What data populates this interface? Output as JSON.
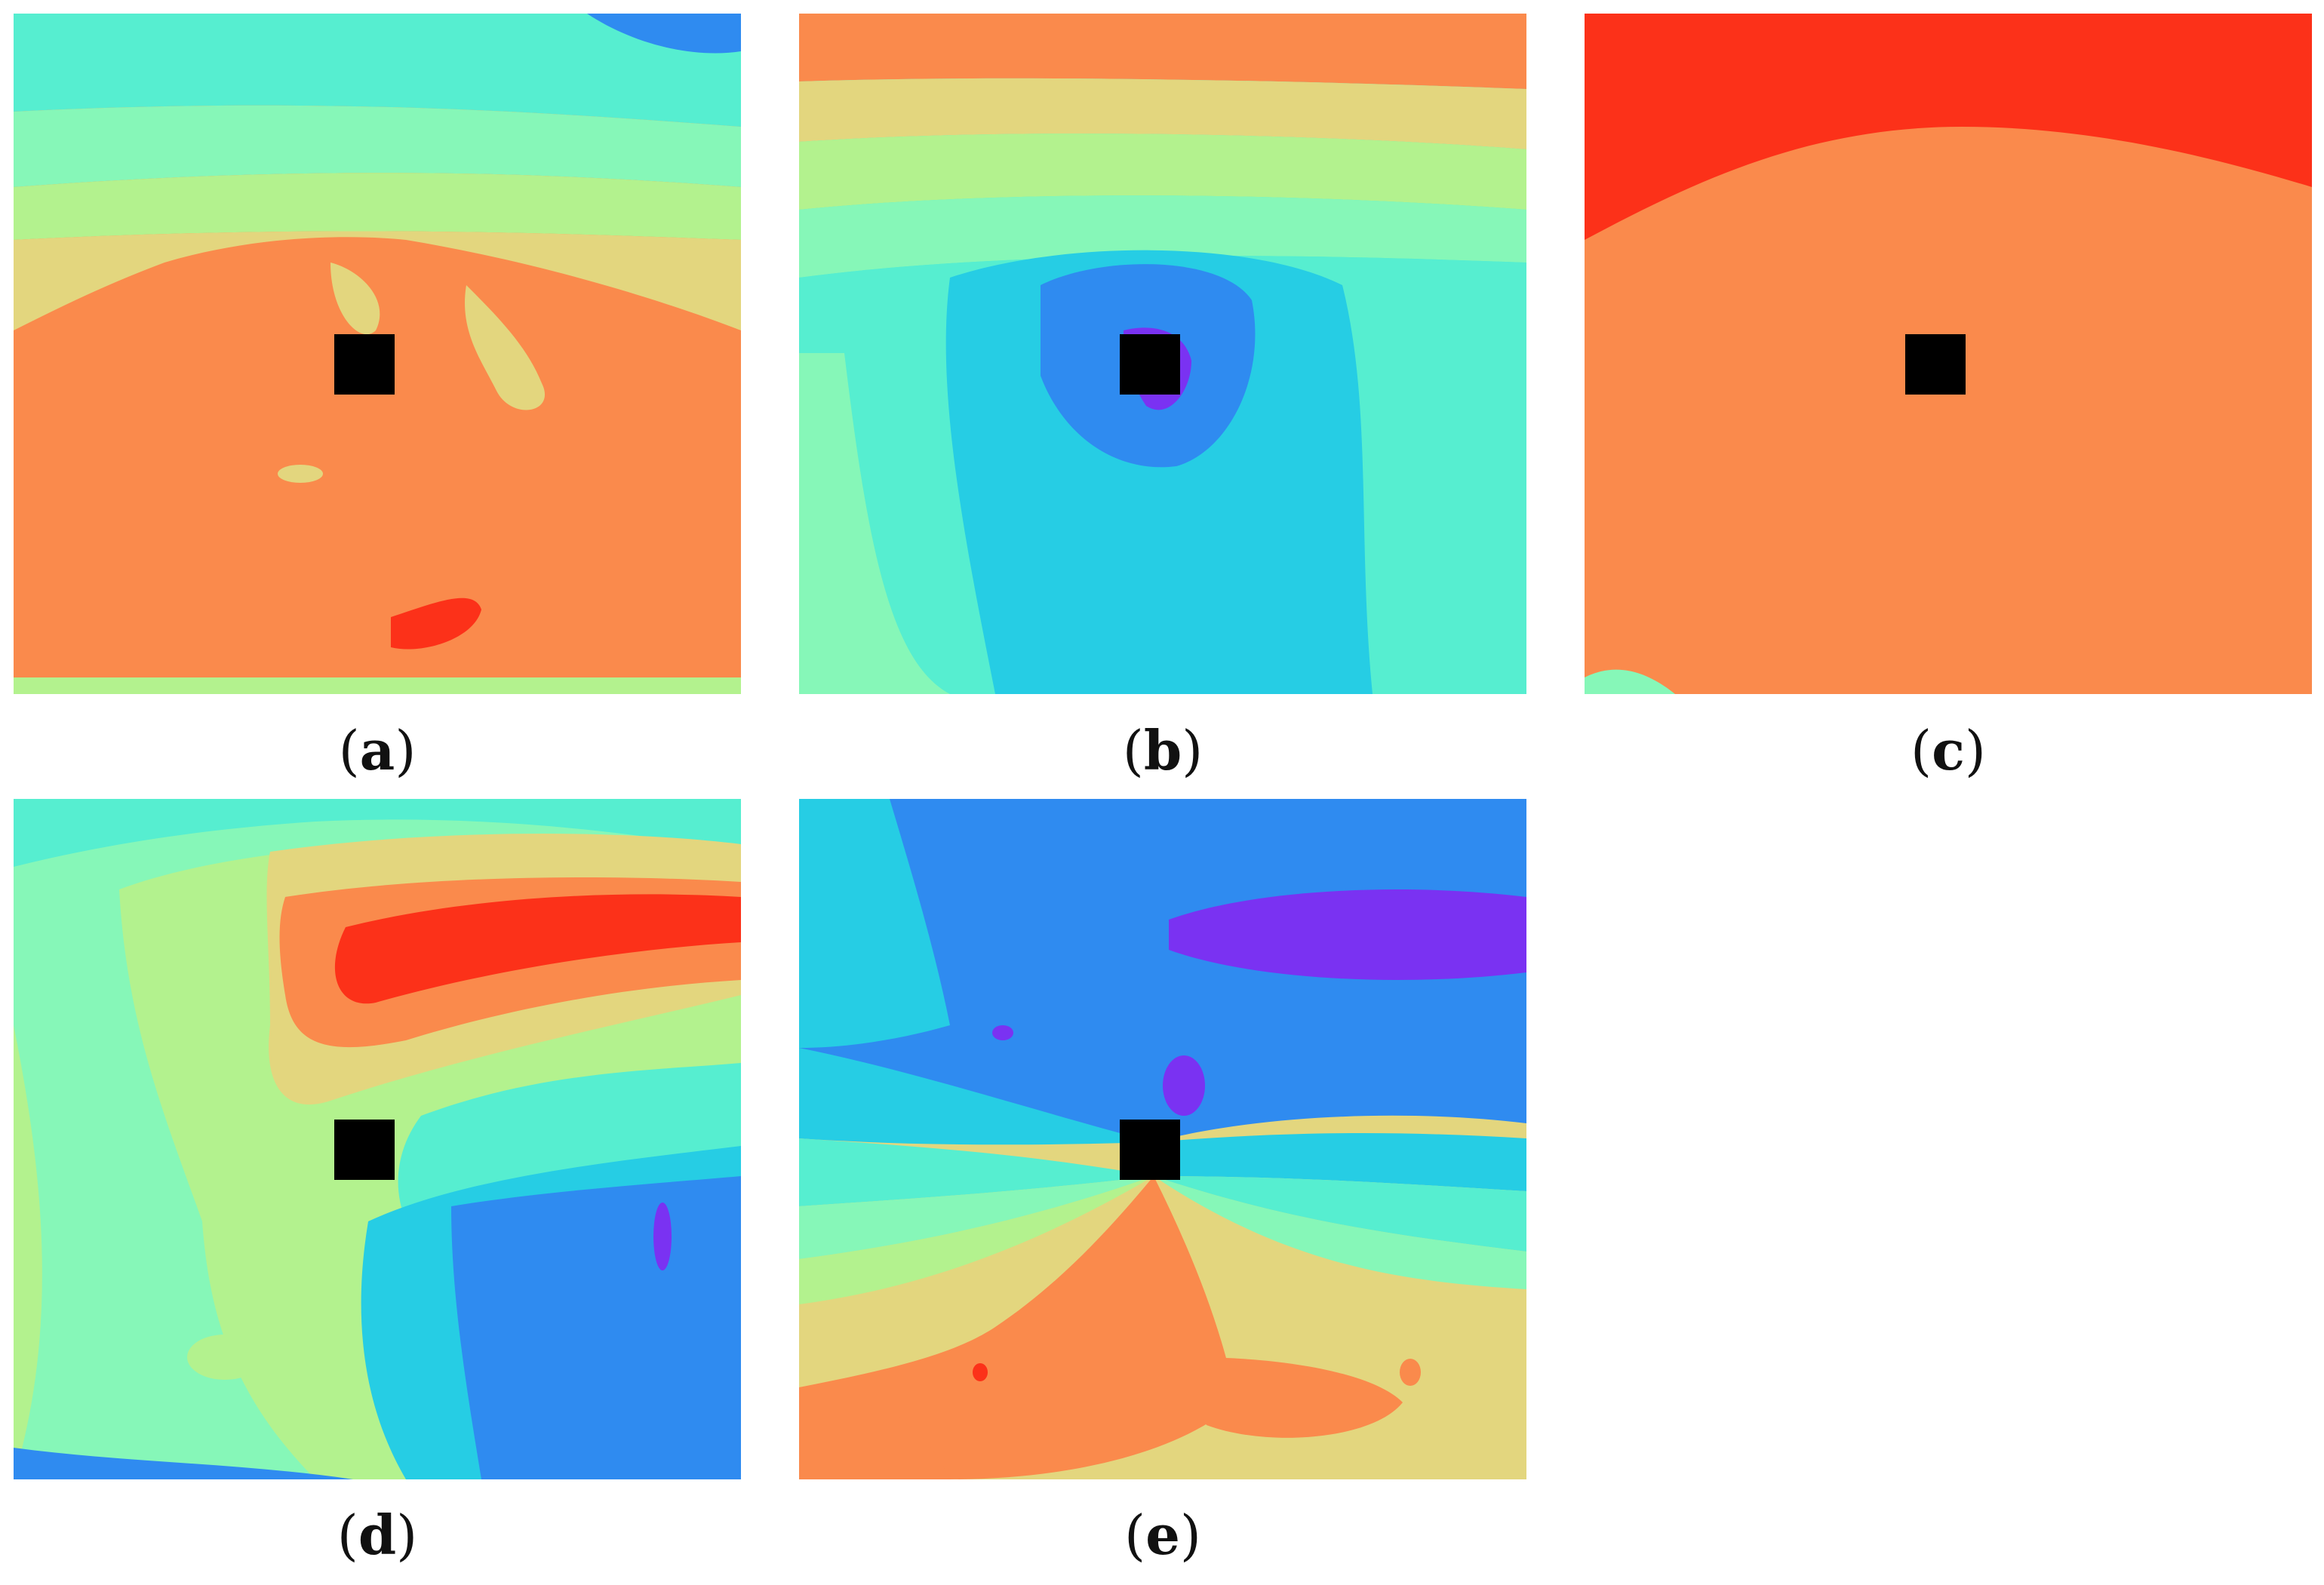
{
  "palette": {
    "violet": "#7a32f2",
    "blue": "#2f8bf0",
    "sky": "#26cde4",
    "aqua": "#56eed0",
    "mint": "#86f7b8",
    "lime": "#b3f28e",
    "sand": "#e3d67e",
    "orange": "#fa8a4c",
    "red": "#fc3119",
    "marker": "#000000"
  },
  "panels": [
    {
      "id": "a",
      "paren_open": "(",
      "letter": "a",
      "paren_close": ")"
    },
    {
      "id": "b",
      "paren_open": "(",
      "letter": "b",
      "paren_close": ")"
    },
    {
      "id": "c",
      "paren_open": "(",
      "letter": "c",
      "paren_close": ")"
    },
    {
      "id": "d",
      "paren_open": "(",
      "letter": "d",
      "paren_close": ")"
    },
    {
      "id": "e",
      "paren_open": "(",
      "letter": "e",
      "paren_close": ")"
    }
  ]
}
